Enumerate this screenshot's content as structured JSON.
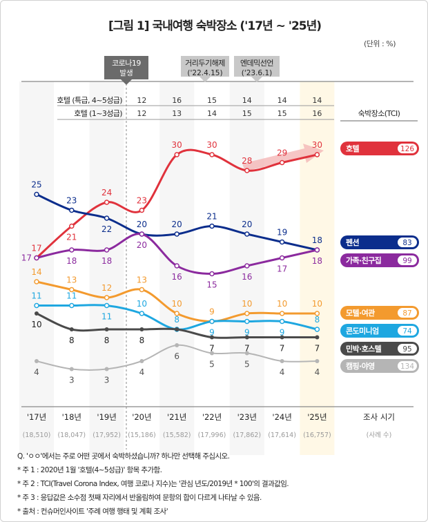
{
  "title": "[그림 1] 국내여행 숙박장소 ('17년 ~ '25년)",
  "unit": "(단위 : %)",
  "events": [
    {
      "line1": "코로나19",
      "line2": "발생"
    },
    {
      "line1": "거리두기해제",
      "line2": "('22.4.15)"
    },
    {
      "line1": "엔데믹선언",
      "line2": "('23.6.1)"
    }
  ],
  "table": {
    "rows": [
      {
        "label": "호텔 (특급, 4~5성급)",
        "values": [
          12,
          16,
          15,
          14,
          14,
          14
        ]
      },
      {
        "label": "호텔 (1~3성급)",
        "values": [
          12,
          13,
          14,
          15,
          15,
          16
        ]
      }
    ],
    "tci_header": "숙박장소(TCI)"
  },
  "chart_data": {
    "type": "line",
    "categories": [
      "'17년",
      "'18년",
      "'19년",
      "'20년",
      "'21년",
      "'22년",
      "'23년",
      "'24년",
      "'25년"
    ],
    "sample_sizes": [
      "(18,510)",
      "(18,047)",
      "(17,952)",
      "(15,186)",
      "(15,582)",
      "(17,996)",
      "(17,862)",
      "(17,614)",
      "(16,757)"
    ],
    "xlabel": "조사 시기",
    "sample_label": "(사례 수)",
    "series": [
      {
        "name": "호텔",
        "tci": "126",
        "color": "#e0323c",
        "values": [
          17,
          21,
          24,
          23,
          30,
          30,
          28,
          29,
          30
        ]
      },
      {
        "name": "펜션",
        "tci": "83",
        "color": "#0b2d8c",
        "values": [
          25,
          23,
          22,
          20,
          20,
          21,
          20,
          19,
          18
        ]
      },
      {
        "name": "가족·친구집",
        "tci": "99",
        "color": "#8b2a9e",
        "values": [
          17,
          18,
          18,
          20,
          16,
          15,
          16,
          17,
          18
        ]
      },
      {
        "name": "모텔·여관",
        "tci": "87",
        "color": "#f39a2e",
        "values": [
          14,
          13,
          12,
          13,
          10,
          9,
          10,
          10,
          10
        ]
      },
      {
        "name": "콘도미니엄",
        "tci": "74",
        "color": "#1ea7e0",
        "values": [
          11,
          11,
          11,
          10,
          8,
          9,
          9,
          9,
          8
        ]
      },
      {
        "name": "민박·호스텔",
        "tci": "95",
        "color": "#4a4a4a",
        "values": [
          10,
          8,
          8,
          8,
          8,
          7,
          7,
          7,
          7
        ]
      },
      {
        "name": "캠핑·야영",
        "tci": "134",
        "color": "#b5b5b5",
        "values": [
          4,
          3,
          3,
          4,
          6,
          5,
          5,
          4,
          4
        ]
      }
    ]
  },
  "footnotes": [
    "Q. 'ㅇㅇ'에서는 주로 어떤 곳에서 숙박하셨습니까? 하나만 선택해 주십시오.",
    "* 주 1 : 2020년 1월 '호텔(4~5성급)' 항목 추가함.",
    "* 주 2 : TCI(Travel Corona Index, 여행 코로나 지수)는 '관심 년도/2019년 * 100'의 결과값임.",
    "* 주 3 : 응답값은 소수점 첫째 자리에서 반올림하여 문항의 합이 다르게 나타날 수 있음.",
    "* 출처 : 컨슈머인사이트 '주례 여행 행태 및 계획 조사'"
  ]
}
